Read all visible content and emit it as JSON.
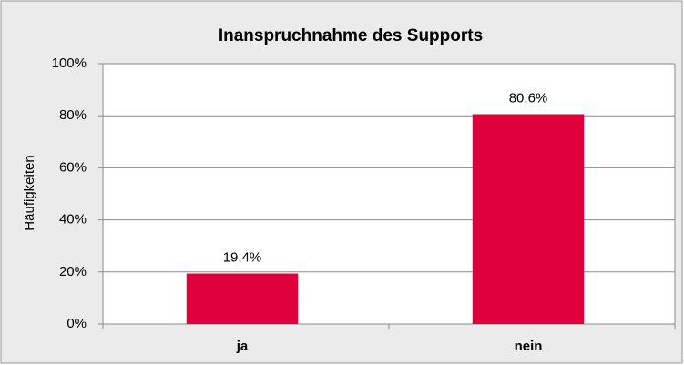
{
  "chart_data": {
    "type": "bar",
    "title": "Inanspruchnahme des Supports",
    "y_label": "Häufigkeiten",
    "categories": [
      "ja",
      "nein"
    ],
    "values": [
      19.4,
      80.6
    ],
    "value_labels": [
      "19,4%",
      "80,6%"
    ],
    "color": "#e0003c",
    "ylim": [
      0,
      100
    ],
    "yticks": [
      {
        "value": 0,
        "label": "0%"
      },
      {
        "value": 20,
        "label": "20%"
      },
      {
        "value": 40,
        "label": "40%"
      },
      {
        "value": 60,
        "label": "60%"
      },
      {
        "value": 80,
        "label": "80%"
      },
      {
        "value": 100,
        "label": "100%"
      }
    ],
    "grid": true
  }
}
